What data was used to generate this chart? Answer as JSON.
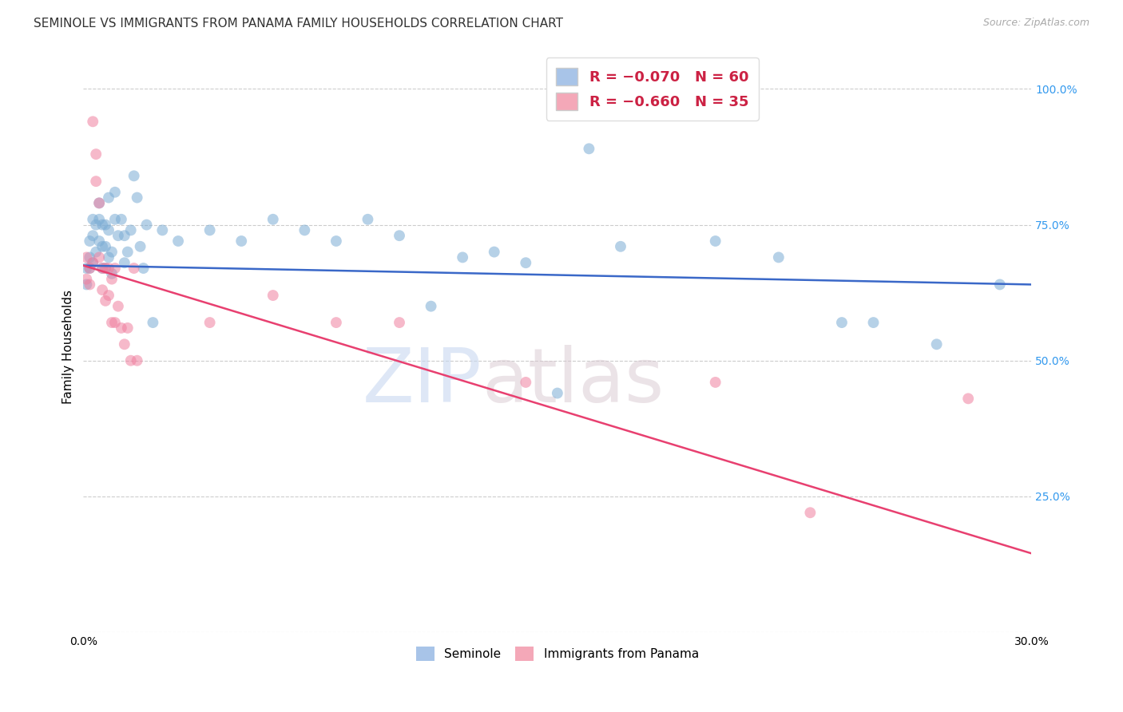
{
  "title": "SEMINOLE VS IMMIGRANTS FROM PANAMA FAMILY HOUSEHOLDS CORRELATION CHART",
  "source": "Source: ZipAtlas.com",
  "ylabel": "Family Households",
  "xlim": [
    0.0,
    0.3
  ],
  "ylim": [
    0.0,
    1.05
  ],
  "watermark_zip": "ZIP",
  "watermark_atlas": "atlas",
  "blue_scatter_x": [
    0.001,
    0.001,
    0.002,
    0.002,
    0.002,
    0.003,
    0.003,
    0.003,
    0.004,
    0.004,
    0.005,
    0.005,
    0.005,
    0.006,
    0.006,
    0.006,
    0.007,
    0.007,
    0.007,
    0.008,
    0.008,
    0.008,
    0.009,
    0.009,
    0.01,
    0.01,
    0.011,
    0.012,
    0.013,
    0.013,
    0.014,
    0.015,
    0.016,
    0.017,
    0.018,
    0.019,
    0.02,
    0.022,
    0.025,
    0.03,
    0.04,
    0.05,
    0.06,
    0.07,
    0.08,
    0.09,
    0.1,
    0.11,
    0.12,
    0.13,
    0.14,
    0.15,
    0.16,
    0.17,
    0.2,
    0.22,
    0.24,
    0.25,
    0.27,
    0.29
  ],
  "blue_scatter_y": [
    0.67,
    0.64,
    0.72,
    0.69,
    0.67,
    0.76,
    0.73,
    0.68,
    0.75,
    0.7,
    0.79,
    0.76,
    0.72,
    0.75,
    0.71,
    0.67,
    0.75,
    0.71,
    0.67,
    0.8,
    0.74,
    0.69,
    0.7,
    0.66,
    0.81,
    0.76,
    0.73,
    0.76,
    0.73,
    0.68,
    0.7,
    0.74,
    0.84,
    0.8,
    0.71,
    0.67,
    0.75,
    0.57,
    0.74,
    0.72,
    0.74,
    0.72,
    0.76,
    0.74,
    0.72,
    0.76,
    0.73,
    0.6,
    0.69,
    0.7,
    0.68,
    0.44,
    0.89,
    0.71,
    0.72,
    0.69,
    0.57,
    0.57,
    0.53,
    0.64
  ],
  "pink_scatter_x": [
    0.001,
    0.001,
    0.002,
    0.002,
    0.003,
    0.003,
    0.004,
    0.004,
    0.005,
    0.005,
    0.006,
    0.006,
    0.007,
    0.007,
    0.008,
    0.008,
    0.009,
    0.009,
    0.01,
    0.01,
    0.011,
    0.012,
    0.013,
    0.014,
    0.015,
    0.016,
    0.017,
    0.04,
    0.06,
    0.08,
    0.1,
    0.14,
    0.2,
    0.23,
    0.28
  ],
  "pink_scatter_y": [
    0.69,
    0.65,
    0.67,
    0.64,
    0.94,
    0.68,
    0.88,
    0.83,
    0.79,
    0.69,
    0.67,
    0.63,
    0.67,
    0.61,
    0.67,
    0.62,
    0.65,
    0.57,
    0.67,
    0.57,
    0.6,
    0.56,
    0.53,
    0.56,
    0.5,
    0.67,
    0.5,
    0.57,
    0.62,
    0.57,
    0.57,
    0.46,
    0.46,
    0.22,
    0.43
  ],
  "blue_line_x": [
    0.0,
    0.3
  ],
  "blue_line_y": [
    0.675,
    0.64
  ],
  "pink_line_x": [
    0.0,
    0.3
  ],
  "pink_line_y": [
    0.675,
    0.145
  ],
  "scatter_alpha": 0.55,
  "scatter_size": 100,
  "scatter_blue_color": "#7bacd4",
  "scatter_pink_color": "#f080a0",
  "line_blue_color": "#3a68c8",
  "line_pink_color": "#e84070",
  "background_color": "#ffffff",
  "grid_color": "#cccccc",
  "title_fontsize": 11,
  "axis_fontsize": 10,
  "yaxis_tick_color": "#3399ee"
}
